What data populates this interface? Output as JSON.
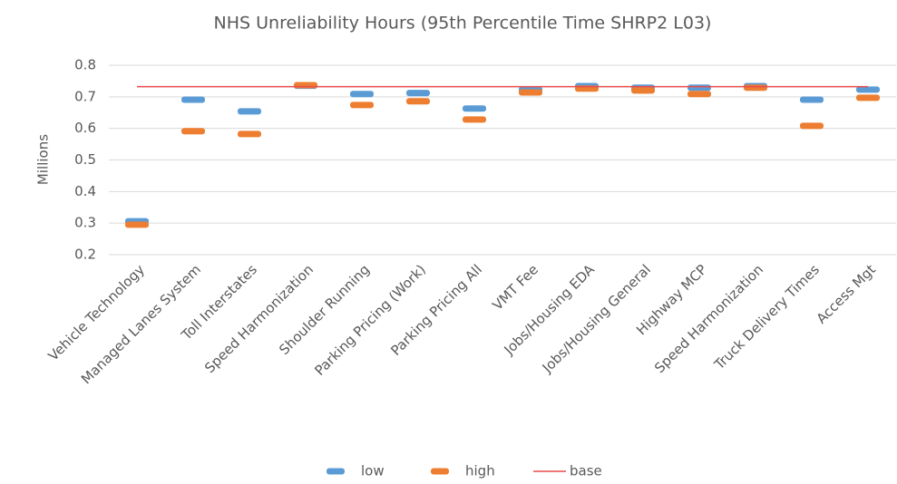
{
  "chart_data": {
    "type": "line",
    "title": "NHS Unreliability Hours (95th Percentile Time SHRP2 L03)",
    "y_label": "Millions",
    "categories": [
      "Vehicle Technology",
      "Managed Lanes System",
      "Toll Interstates",
      "Speed Harmonization",
      "Shoulder Running",
      "Parking Pricing (Work)",
      "Parking Pricing All",
      "VMT Fee",
      "Jobs/Housing EDA",
      "Jobs/Housing General",
      "Highway MCP",
      "Speed Harmonization",
      "Truck Delivery Times",
      "Access Mgt"
    ],
    "series": [
      {
        "name": "low",
        "color": "#5b9bd5",
        "style": "marker",
        "values": [
          0.306,
          0.691,
          0.654,
          0.735,
          0.709,
          0.712,
          0.663,
          0.723,
          0.734,
          0.729,
          0.729,
          0.734,
          0.691,
          0.723
        ]
      },
      {
        "name": "high",
        "color": "#ed7d31",
        "style": "marker",
        "values": [
          0.295,
          0.591,
          0.582,
          0.737,
          0.674,
          0.686,
          0.628,
          0.714,
          0.726,
          0.72,
          0.709,
          0.729,
          0.608,
          0.697
        ]
      },
      {
        "name": "base",
        "color": "#e84c4c",
        "style": "line",
        "values": [
          0.732,
          0.732,
          0.732,
          0.732,
          0.732,
          0.732,
          0.732,
          0.732,
          0.732,
          0.732,
          0.732,
          0.732,
          0.732,
          0.732
        ]
      }
    ],
    "ylim": [
      0.2,
      0.8
    ],
    "yticks": [
      0.2,
      0.3,
      0.4,
      0.5,
      0.6,
      0.7,
      0.8
    ],
    "grid": true,
    "legend": "bottom"
  }
}
